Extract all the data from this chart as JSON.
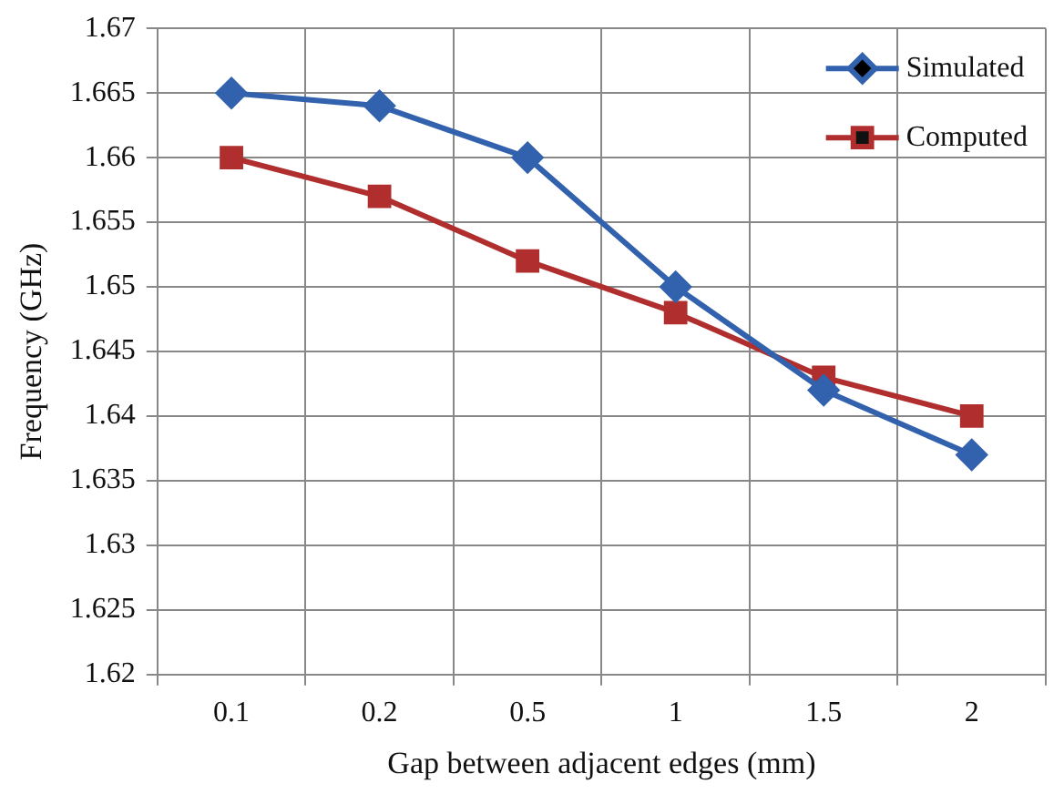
{
  "chart_data": {
    "type": "line",
    "xlabel": "Gap between adjacent edges (mm)",
    "ylabel": "Frequency (GHz)",
    "categories": [
      "0.1",
      "0.2",
      "0.5",
      "1",
      "1.5",
      "2"
    ],
    "series": [
      {
        "name": "Simulated",
        "color": "#3262ad",
        "marker": "diamond",
        "values": [
          1.665,
          1.664,
          1.66,
          1.65,
          1.642,
          1.637
        ]
      },
      {
        "name": "Computed",
        "color": "#b02e2e",
        "marker": "square",
        "values": [
          1.66,
          1.657,
          1.652,
          1.648,
          1.643,
          1.64
        ]
      }
    ],
    "ylim": [
      1.62,
      1.67
    ],
    "yticks": [
      1.62,
      1.625,
      1.63,
      1.635,
      1.64,
      1.645,
      1.65,
      1.655,
      1.66,
      1.665,
      1.67
    ],
    "grid": true,
    "legend": "top right",
    "line_style": "solid"
  }
}
